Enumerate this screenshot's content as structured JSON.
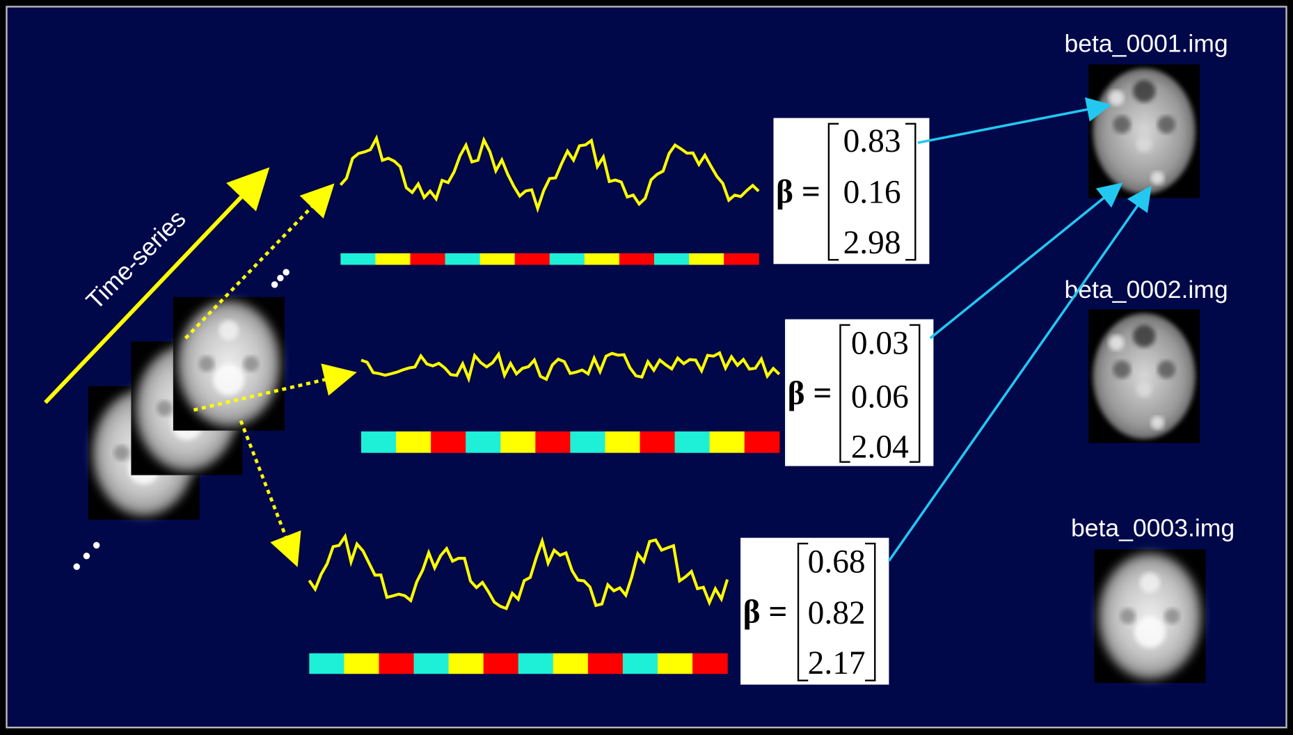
{
  "axis_label": "Time-series",
  "rows": [
    {
      "label": "β =",
      "betas": [
        "0.83",
        "0.16",
        "2.98"
      ]
    },
    {
      "label": "β =",
      "betas": [
        "0.03",
        "0.06",
        "2.04"
      ]
    },
    {
      "label": "β =",
      "betas": [
        "0.68",
        "0.82",
        "2.17"
      ]
    }
  ],
  "images": [
    {
      "label": "beta_0001.img"
    },
    {
      "label": "beta_0002.img"
    },
    {
      "label": "beta_0003.img"
    }
  ]
}
